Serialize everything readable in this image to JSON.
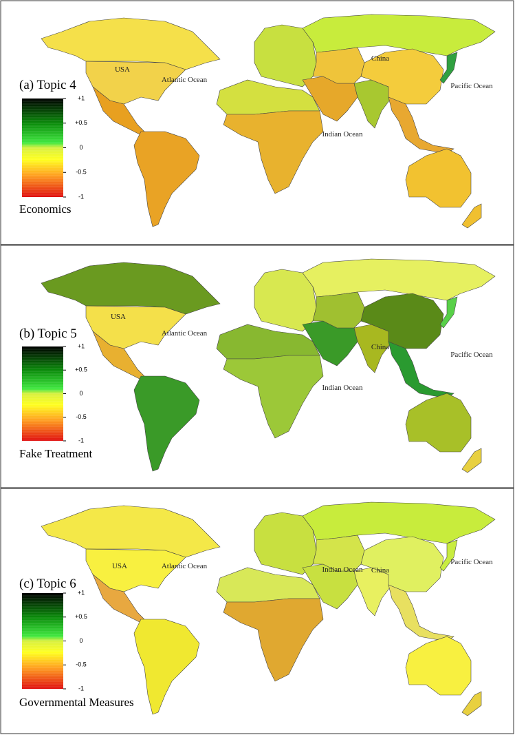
{
  "panels": [
    {
      "title": "(a) Topic 4",
      "subtitle": "Economics",
      "region_colors": [
        "#f5e04a",
        "#f2d24a",
        "#e8a020",
        "#e9a325",
        "#c8e040",
        "#c8ec3c",
        "#d4e040",
        "#e8b22e",
        "#e6a82a",
        "#efc43a",
        "#a8c830",
        "#f4cc3c",
        "#e8a830",
        "#f2c230",
        "#f0c030",
        "#30a040"
      ]
    },
    {
      "title": "(b) Topic 5",
      "subtitle": "Fake Treatment",
      "region_colors": [
        "#6a9a20",
        "#f4e04a",
        "#e8b030",
        "#3a9a28",
        "#d8e850",
        "#e6f060",
        "#88b830",
        "#9cc838",
        "#3a9a28",
        "#a0c030",
        "#a8b820",
        "#5a8a18",
        "#2a9a30",
        "#a8c028",
        "#e8d040",
        "#58d048"
      ]
    },
    {
      "title": "(c) Topic 6",
      "subtitle": "Governmental Measures",
      "region_colors": [
        "#f4e848",
        "#f8f040",
        "#e8a840",
        "#f0e830",
        "#c8e040",
        "#c8ec3c",
        "#d8e858",
        "#e0a830",
        "#c8e040",
        "#d4e44a",
        "#e8f060",
        "#e0f060",
        "#e8e060",
        "#f8f040",
        "#e8d040",
        "#c8ec40"
      ]
    }
  ],
  "labels": [
    "USA",
    "Atlantic Ocean",
    "China",
    "Indian Ocean",
    "Pacific Ocean"
  ],
  "colorbar": {
    "range": [
      -1,
      1
    ],
    "ticks": [
      {
        "value": 1,
        "label": "+1"
      },
      {
        "value": 0.5,
        "label": "+0.5"
      },
      0,
      -0.5,
      -1
    ]
  }
}
